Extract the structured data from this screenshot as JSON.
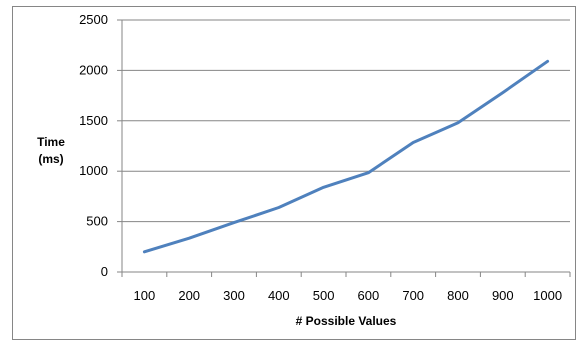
{
  "chart_data": {
    "type": "line",
    "x": [
      100,
      200,
      300,
      400,
      500,
      600,
      700,
      800,
      900,
      1000
    ],
    "series": [
      {
        "values": [
          200,
          335,
          490,
          640,
          840,
          985,
          1285,
          1480,
          1780,
          2090
        ]
      }
    ],
    "title": "",
    "xlabel": "# Possible Values",
    "ylabel": [
      "Time",
      "(ms)"
    ],
    "ylim": [
      0,
      2500
    ],
    "yticks": [
      0,
      500,
      1000,
      1500,
      2000,
      2500
    ],
    "grid": "horizontal",
    "legend": "none",
    "colors": {
      "line": "#4F81BD",
      "grid": "#868686",
      "axis": "#868686"
    }
  }
}
